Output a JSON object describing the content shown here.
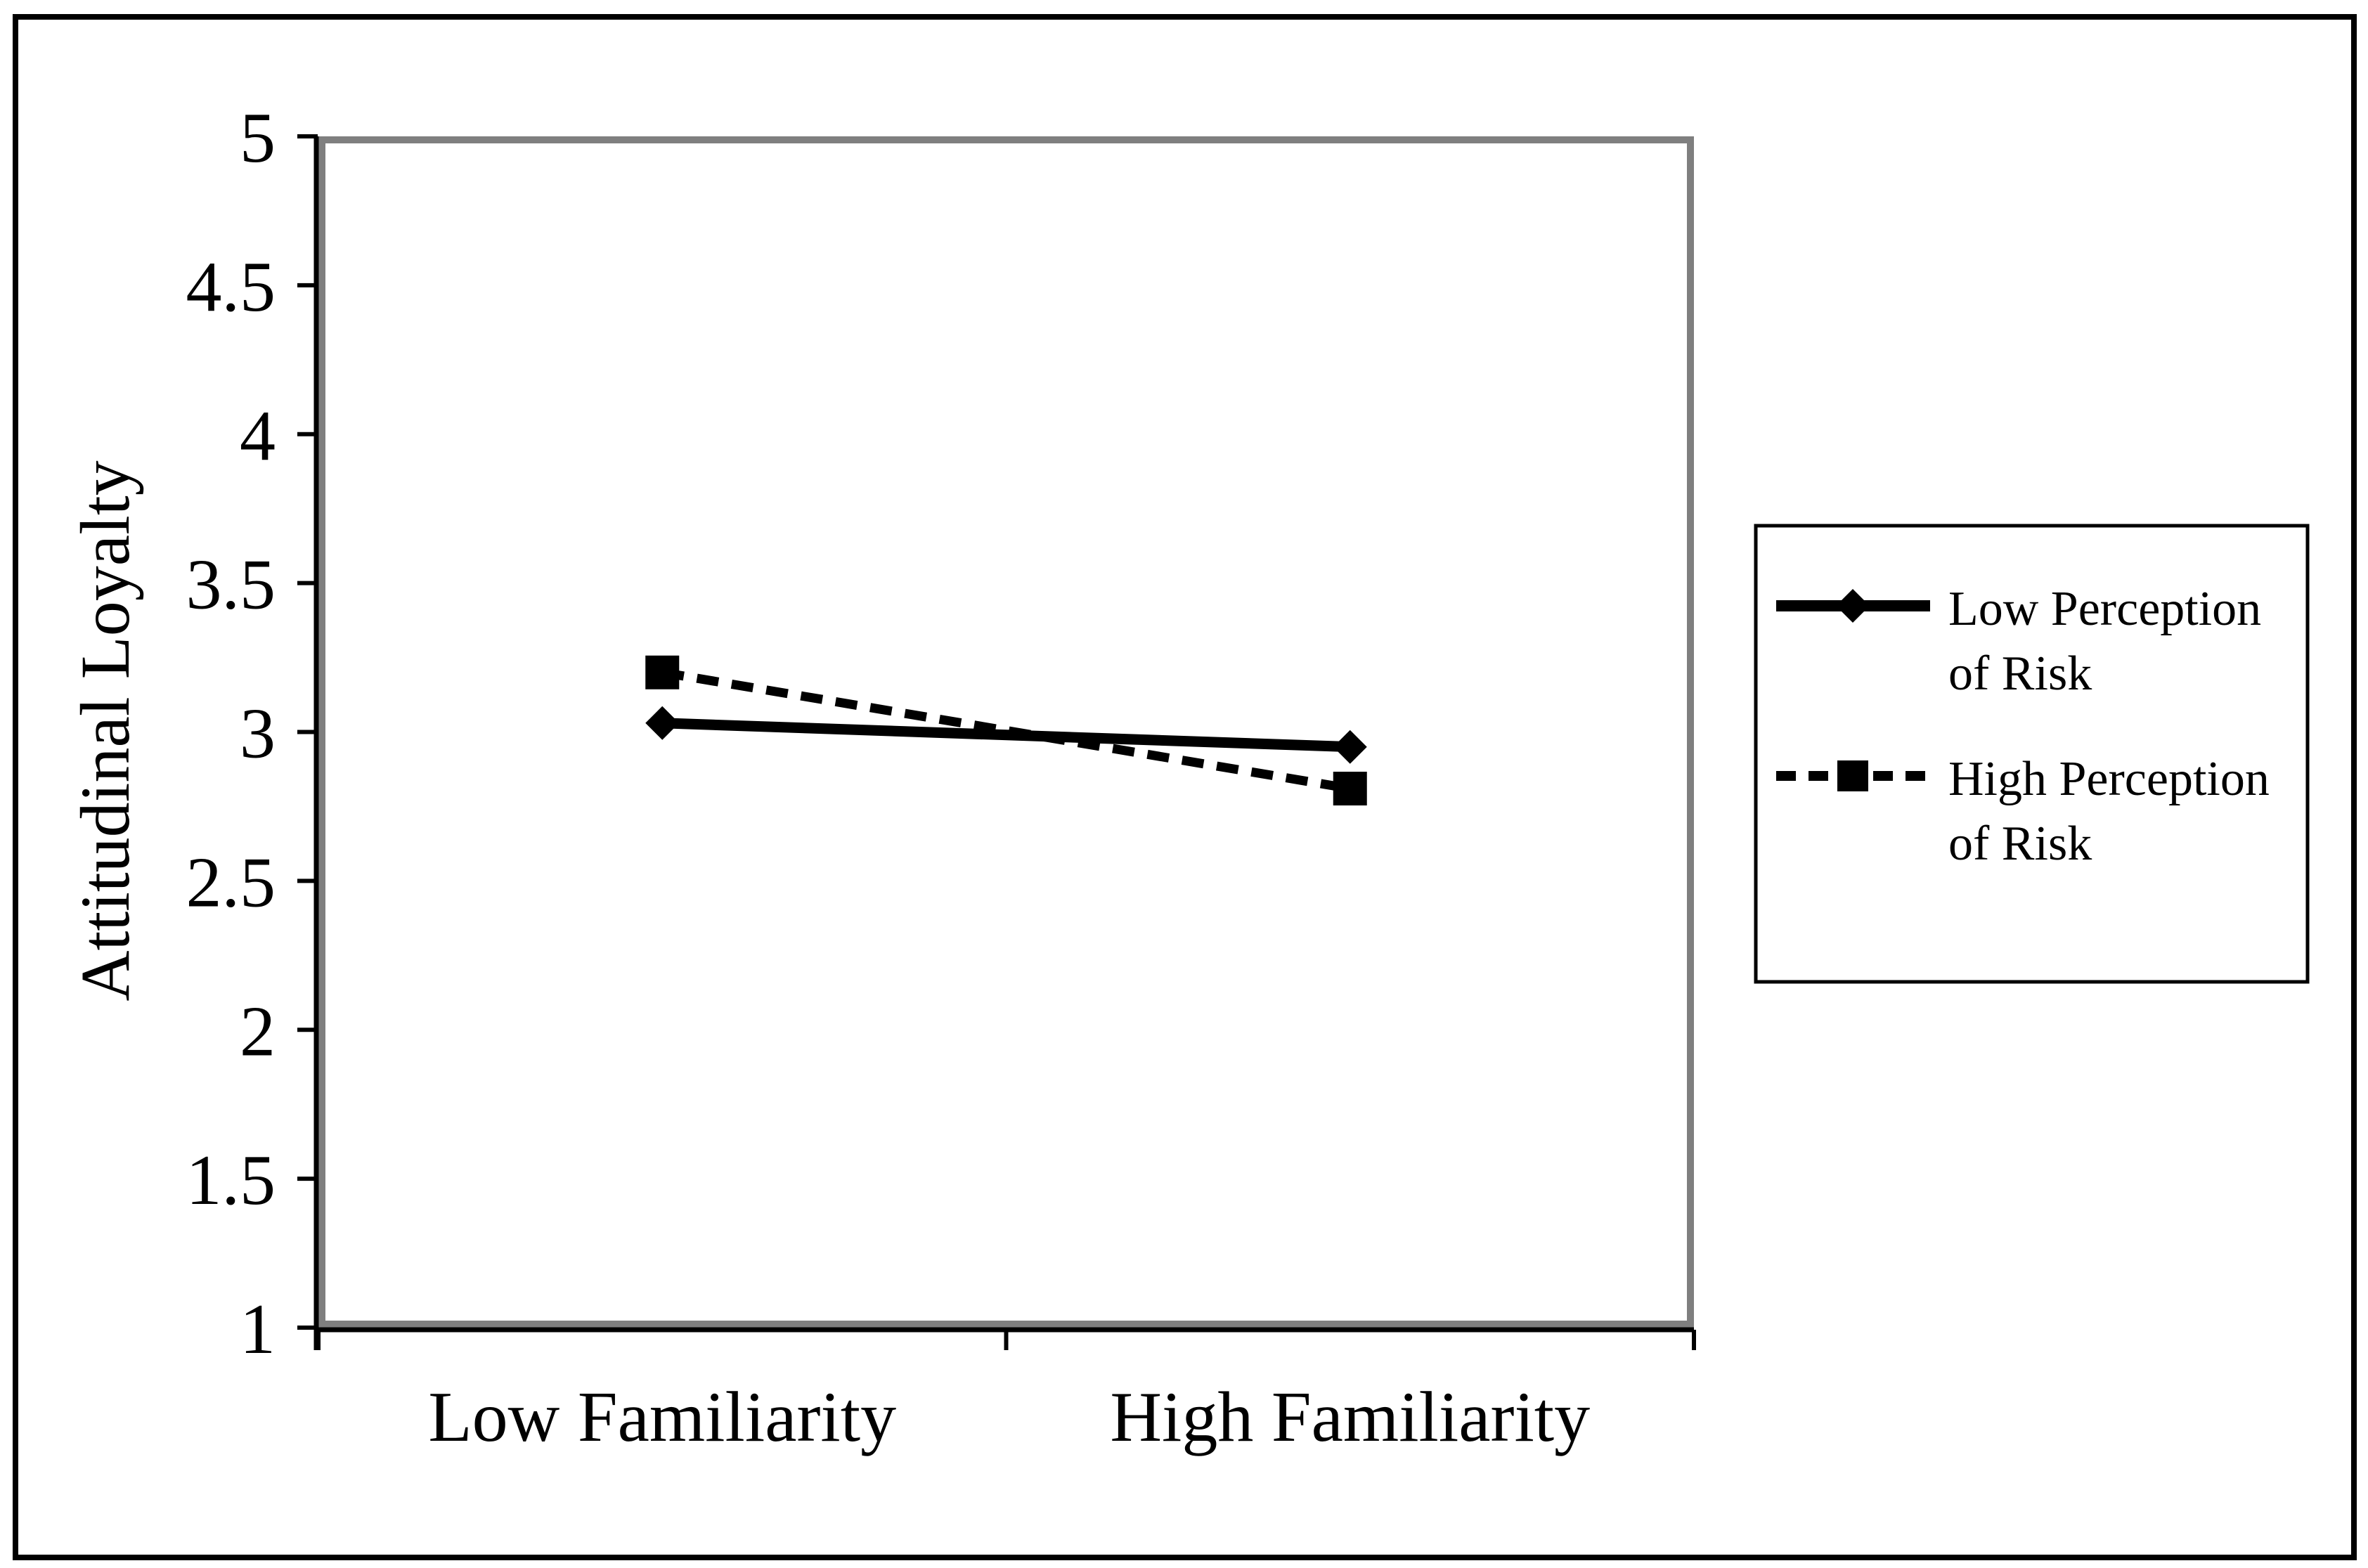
{
  "figure": {
    "description": "Interaction line chart of familiarity and perception of risk on attitudinal loyalty",
    "background": "#FFFFFF"
  },
  "colors": {
    "axis": "#000000",
    "series": "#000000",
    "text": "#000000",
    "plot_border_shadow": "#7F7F7F",
    "figure_border": "#000000"
  },
  "y_axis": {
    "title": "Attitudinal Loyalty",
    "tick_labels": [
      "5",
      "4.5",
      "4",
      "3.5",
      "3",
      "2.5",
      "2",
      "1.5",
      "1"
    ]
  },
  "x_axis": {
    "categories": [
      "Low Familiarity",
      "High Familiarity"
    ]
  },
  "legend": {
    "entries": [
      {
        "lines": [
          "Low Perception",
          "of Risk"
        ],
        "marker": "diamond",
        "line_style": "solid"
      },
      {
        "lines": [
          "High Perception",
          "of Risk"
        ],
        "marker": "square",
        "line_style": "dashed"
      }
    ]
  },
  "chart_data": {
    "type": "line",
    "categories": [
      "Low Familiarity",
      "High Familiarity"
    ],
    "series": [
      {
        "name": "Low Perception of Risk",
        "marker": "diamond",
        "line_style": "solid",
        "values": [
          3.03,
          2.95
        ]
      },
      {
        "name": "High Perception of Risk",
        "marker": "square",
        "line_style": "dashed",
        "values": [
          3.2,
          2.81
        ]
      }
    ],
    "title": "",
    "xlabel": "",
    "ylabel": "Attitudinal Loyalty",
    "ylim": [
      1,
      5
    ],
    "ytick_step": 0.5,
    "grid": false,
    "legend_position": "right"
  }
}
